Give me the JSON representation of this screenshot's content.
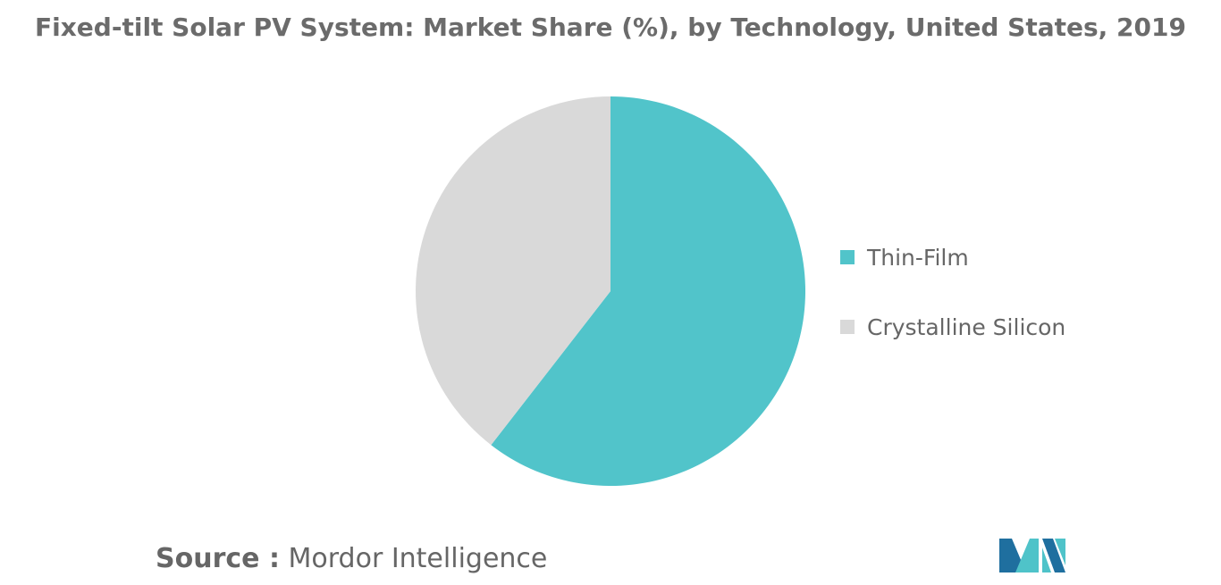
{
  "chart_data": {
    "type": "pie",
    "title": "Fixed-tilt Solar PV System: Market Share (%), by Technology, United States, 2019",
    "categories": [
      "Thin-Film",
      "Crystalline Silicon"
    ],
    "values": [
      60.5,
      39.5
    ],
    "colors": [
      "#51c4ca",
      "#d9d9d9"
    ],
    "legend_position": "right",
    "start_angle_deg": 0,
    "direction": "clockwise"
  },
  "source": {
    "prefix": "Source :",
    "text": "Mordor Intelligence"
  },
  "logo": {
    "icon": "mordor-intelligence-logo",
    "colors": [
      "#1f6f9f",
      "#4fc3c9"
    ]
  }
}
